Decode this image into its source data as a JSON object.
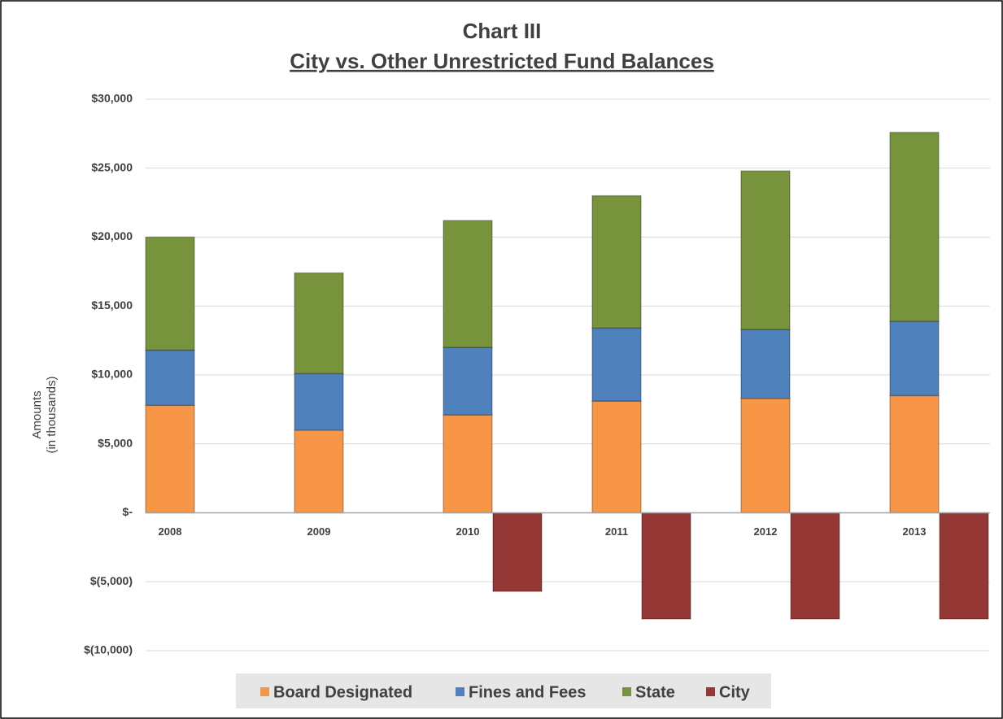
{
  "chart_data": {
    "type": "stacked_bar",
    "title": "Chart III",
    "subtitle": "City vs. Other Unrestricted Fund Balances",
    "y_label": [
      "Amounts",
      "(in thousands)"
    ],
    "categories": [
      "2008",
      "2009",
      "2010",
      "2011",
      "2012",
      "2013"
    ],
    "series": [
      {
        "name": "Board Designated",
        "color": "#f79646",
        "stack": 0,
        "values": [
          7800,
          6000,
          7100,
          8100,
          8300,
          8500
        ]
      },
      {
        "name": "Fines and Fees",
        "color": "#4f81bd",
        "stack": 0,
        "values": [
          4000,
          4100,
          4900,
          5300,
          5000,
          5400
        ]
      },
      {
        "name": "State",
        "color": "#77933c",
        "stack": 0,
        "values": [
          8200,
          7300,
          9200,
          9600,
          11500,
          13700
        ]
      },
      {
        "name": "City",
        "color": "#953735",
        "stack": 1,
        "values": [
          null,
          null,
          -5700,
          -7700,
          -7700,
          -7700
        ]
      }
    ],
    "ylim": [
      -10000,
      30000
    ],
    "yticks": [
      {
        "value": -10000,
        "label": "$(10,000)"
      },
      {
        "value": -5000,
        "label": "$(5,000)"
      },
      {
        "value": 0,
        "label": "$-"
      },
      {
        "value": 5000,
        "label": "$5,000"
      },
      {
        "value": 10000,
        "label": "$10,000"
      },
      {
        "value": 15000,
        "label": "$15,000"
      },
      {
        "value": 20000,
        "label": "$20,000"
      },
      {
        "value": 25000,
        "label": "$25,000"
      },
      {
        "value": 30000,
        "label": "$30,000"
      }
    ],
    "grid": true,
    "legend": "bottom"
  }
}
